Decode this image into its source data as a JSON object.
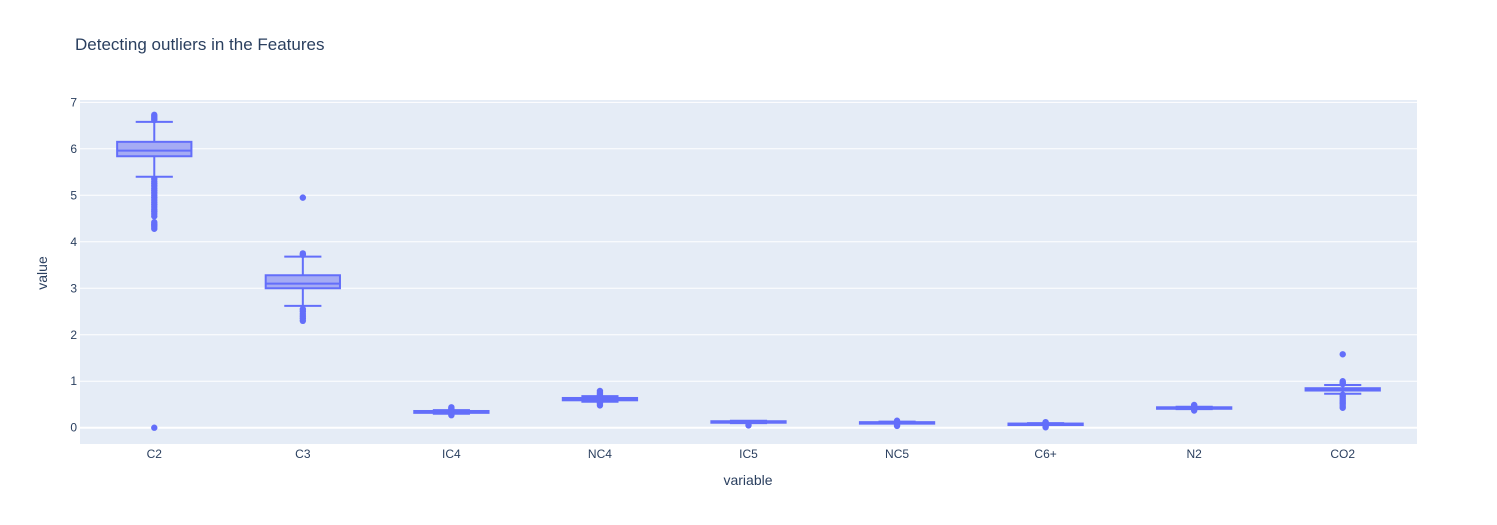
{
  "chart_data": {
    "type": "box",
    "title": "Detecting outliers in the Features",
    "xlabel": "variable",
    "ylabel": "value",
    "ylim": [
      -0.35,
      7.05
    ],
    "yticks": [
      0,
      1,
      2,
      3,
      4,
      5,
      6,
      7
    ],
    "grid": true,
    "colors": {
      "box": "#636efa",
      "fill": "#a5abf4",
      "plot_bg": "#e5ecf6",
      "grid": "#ffffff",
      "text": "#2a3f5f"
    },
    "categories": [
      "C2",
      "C3",
      "IC4",
      "NC4",
      "IC5",
      "NC5",
      "C6+",
      "N2",
      "CO2"
    ],
    "boxes": [
      {
        "category": "C2",
        "lower_fence": 5.4,
        "q1": 5.84,
        "median": 5.96,
        "q3": 6.15,
        "upper_fence": 6.58,
        "outliers": [
          0,
          4.28,
          4.32,
          4.35,
          4.38,
          4.42,
          4.55,
          4.6,
          4.65,
          4.7,
          4.75,
          4.8,
          4.85,
          4.9,
          4.95,
          5.0,
          5.05,
          5.1,
          5.15,
          5.2,
          5.25,
          5.3,
          5.35,
          6.62,
          6.66,
          6.7,
          6.73
        ]
      },
      {
        "category": "C3",
        "lower_fence": 2.62,
        "q1": 3.0,
        "median": 3.1,
        "q3": 3.28,
        "upper_fence": 3.68,
        "outliers": [
          2.3,
          2.35,
          2.4,
          2.45,
          2.5,
          2.55,
          3.72,
          3.75,
          4.95
        ]
      },
      {
        "category": "IC4",
        "lower_fence": 0.3,
        "q1": 0.32,
        "median": 0.34,
        "q3": 0.36,
        "upper_fence": 0.38,
        "outliers": [
          0.27,
          0.29,
          0.4,
          0.42,
          0.44
        ]
      },
      {
        "category": "NC4",
        "lower_fence": 0.56,
        "q1": 0.59,
        "median": 0.61,
        "q3": 0.64,
        "upper_fence": 0.68,
        "outliers": [
          0.48,
          0.51,
          0.54,
          0.7,
          0.73,
          0.76,
          0.79
        ]
      },
      {
        "category": "IC5",
        "lower_fence": 0.1,
        "q1": 0.11,
        "median": 0.12,
        "q3": 0.14,
        "upper_fence": 0.15,
        "outliers": [
          0.05,
          0.08
        ]
      },
      {
        "category": "NC5",
        "lower_fence": 0.09,
        "q1": 0.1,
        "median": 0.11,
        "q3": 0.12,
        "upper_fence": 0.13,
        "outliers": [
          0.04,
          0.06,
          0.15
        ]
      },
      {
        "category": "C6+",
        "lower_fence": 0.06,
        "q1": 0.07,
        "median": 0.08,
        "q3": 0.09,
        "upper_fence": 0.1,
        "outliers": [
          0.01,
          0.03,
          0.05,
          0.11,
          0.12
        ]
      },
      {
        "category": "N2",
        "lower_fence": 0.4,
        "q1": 0.41,
        "median": 0.42,
        "q3": 0.44,
        "upper_fence": 0.45,
        "outliers": [
          0.37,
          0.47,
          0.49
        ]
      },
      {
        "category": "CO2",
        "lower_fence": 0.73,
        "q1": 0.8,
        "median": 0.82,
        "q3": 0.85,
        "upper_fence": 0.92,
        "outliers": [
          0.43,
          0.47,
          0.51,
          0.55,
          0.59,
          0.63,
          0.67,
          0.71,
          0.94,
          0.97,
          1.0,
          1.58
        ]
      }
    ]
  }
}
